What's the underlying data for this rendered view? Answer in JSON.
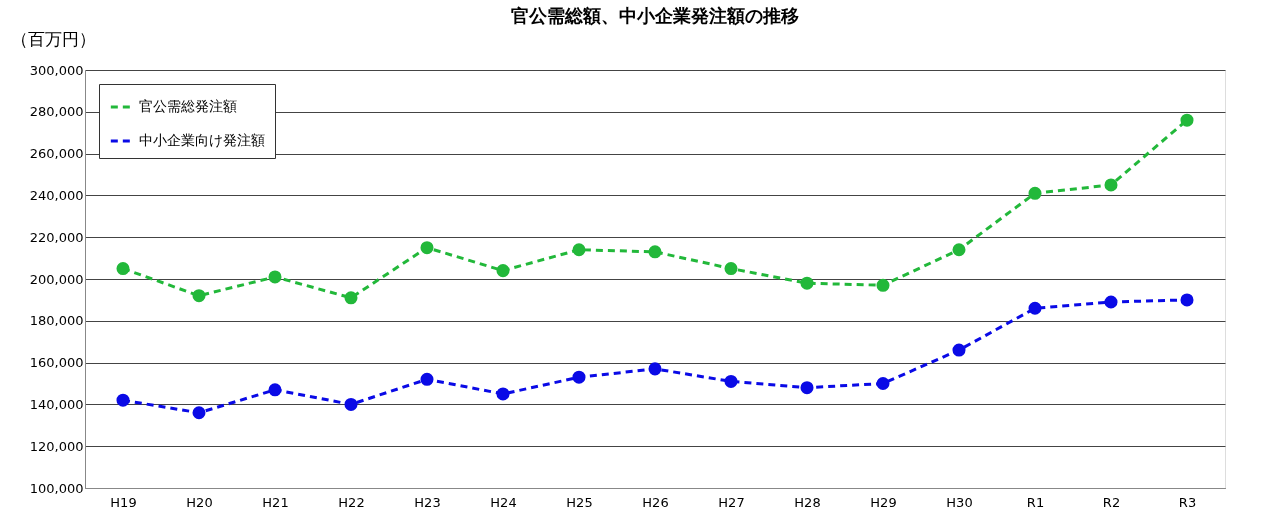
{
  "chart_data": {
    "type": "line",
    "title": "官公需総額、中小企業発注額の推移",
    "ylabel": "（百万円）",
    "categories": [
      "H19",
      "H20",
      "H21",
      "H22",
      "H23",
      "H24",
      "H25",
      "H26",
      "H27",
      "H28",
      "H29",
      "H30",
      "R1",
      "R2",
      "R3"
    ],
    "series": [
      {
        "name": "官公需総発注額",
        "color": "#22b83a",
        "values": [
          205000,
          192000,
          201000,
          191000,
          215000,
          204000,
          214000,
          213000,
          205000,
          198000,
          197000,
          214000,
          241000,
          245000,
          276000
        ]
      },
      {
        "name": "中小企業向け発注額",
        "color": "#0a0ae6",
        "values": [
          142000,
          136000,
          147000,
          140000,
          152000,
          145000,
          153000,
          157000,
          151000,
          148000,
          150000,
          166000,
          186000,
          189000,
          190000
        ]
      }
    ],
    "ylim": [
      100000,
      300000
    ],
    "yticks": [
      {
        "value": 100000,
        "label": "100,000"
      },
      {
        "value": 120000,
        "label": "120,000"
      },
      {
        "value": 140000,
        "label": "140,000"
      },
      {
        "value": 160000,
        "label": "160,000"
      },
      {
        "value": 180000,
        "label": "180,000"
      },
      {
        "value": 200000,
        "label": "200,000"
      },
      {
        "value": 220000,
        "label": "220,000"
      },
      {
        "value": 240000,
        "label": "240,000"
      },
      {
        "value": 260000,
        "label": "260,000"
      },
      {
        "value": 280000,
        "label": "280,000"
      },
      {
        "value": 300000,
        "label": "300,000"
      }
    ],
    "grid": "y",
    "legend": "top left",
    "marker": "circle",
    "line_style": "dashed"
  }
}
